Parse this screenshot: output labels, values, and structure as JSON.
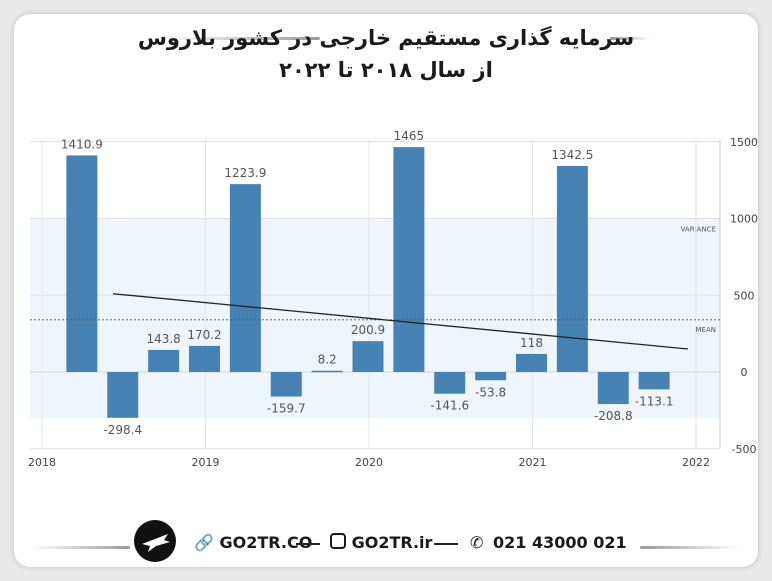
{
  "title": {
    "line1": "سرمایه گذاری مستقیم خارجی در کشور بلاروس",
    "line2": "از سال ۲۰۱۸ تا ۲۰۲۲"
  },
  "footer": {
    "website": "GO2TR.CO",
    "instagram": "GO2TR.ir",
    "phone": "021 43000 021",
    "icons": [
      "logo-icon",
      "link-icon",
      "instagram-icon",
      "phone-icon"
    ]
  },
  "chart_data": {
    "type": "bar",
    "title": "",
    "xlabel": "",
    "ylabel": "",
    "x_ticks": [
      "2018",
      "2019",
      "2020",
      "2021",
      "2022"
    ],
    "y_ticks": [
      1500,
      1000,
      500,
      0,
      -500
    ],
    "ylim": [
      -500,
      1500
    ],
    "y_axis_position": "right",
    "grid": true,
    "bar_color": "#4682b4",
    "bars": [
      {
        "x": 2018.25,
        "value": 1410.9,
        "label": "1410.9"
      },
      {
        "x": 2018.5,
        "value": -298.4,
        "label": "-298.4"
      },
      {
        "x": 2018.75,
        "value": 143.8,
        "label": "143.8"
      },
      {
        "x": 2019.0,
        "value": 170.2,
        "label": "170.2"
      },
      {
        "x": 2019.25,
        "value": 1223.9,
        "label": "1223.9"
      },
      {
        "x": 2019.5,
        "value": -159.7,
        "label": "-159.7"
      },
      {
        "x": 2019.75,
        "value": 8.2,
        "label": "8.2"
      },
      {
        "x": 2020.0,
        "value": 200.9,
        "label": "200.9"
      },
      {
        "x": 2020.25,
        "value": 1465,
        "label": "1465"
      },
      {
        "x": 2020.5,
        "value": -141.6,
        "label": "-141.6"
      },
      {
        "x": 2020.75,
        "value": -53.8,
        "label": "-53.8"
      },
      {
        "x": 2021.0,
        "value": 118,
        "label": "118"
      },
      {
        "x": 2021.25,
        "value": 1342.5,
        "label": "1342.5"
      },
      {
        "x": 2021.5,
        "value": -208.8,
        "label": "-208.8"
      },
      {
        "x": 2021.75,
        "value": -113.1,
        "label": "-113.1"
      }
    ],
    "mean": {
      "value": 340,
      "label": "MEAN"
    },
    "variance_band": {
      "from": -300,
      "to": 1000,
      "label": "VARIANCE"
    },
    "trend_line": {
      "start": {
        "x": 2018.25,
        "y": 510
      },
      "end": {
        "x": 2021.95,
        "y": 150
      }
    }
  }
}
